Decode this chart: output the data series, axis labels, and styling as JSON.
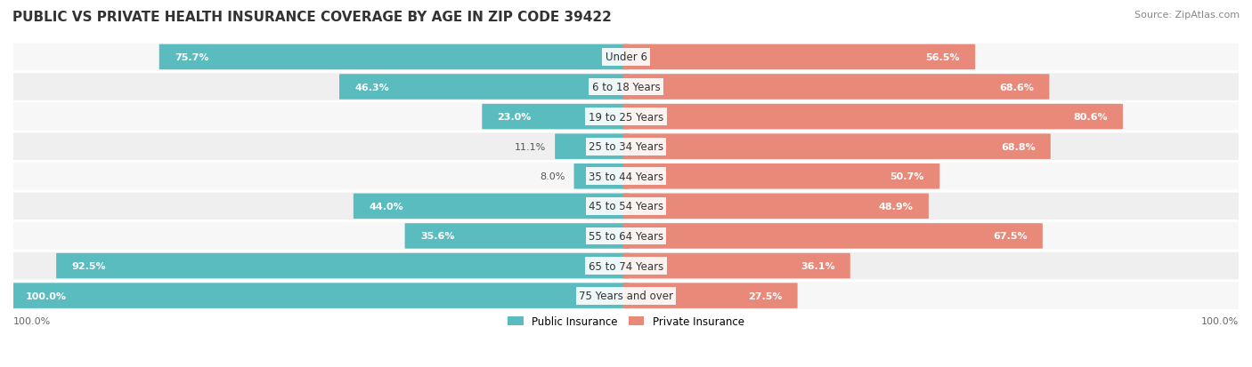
{
  "title": "PUBLIC VS PRIVATE HEALTH INSURANCE COVERAGE BY AGE IN ZIP CODE 39422",
  "source": "Source: ZipAtlas.com",
  "categories": [
    "Under 6",
    "6 to 18 Years",
    "19 to 25 Years",
    "25 to 34 Years",
    "35 to 44 Years",
    "45 to 54 Years",
    "55 to 64 Years",
    "65 to 74 Years",
    "75 Years and over"
  ],
  "public_values": [
    75.7,
    46.3,
    23.0,
    11.1,
    8.0,
    44.0,
    35.6,
    92.5,
    100.0
  ],
  "private_values": [
    56.5,
    68.6,
    80.6,
    68.8,
    50.7,
    48.9,
    67.5,
    36.1,
    27.5
  ],
  "public_color": "#5bbcbf",
  "private_color": "#e8897a",
  "bg_colors": [
    "#f7f7f7",
    "#efefef"
  ],
  "title_color": "#333333",
  "white_text": "#ffffff",
  "max_value": 100.0,
  "title_fontsize": 11,
  "label_fontsize": 8.5,
  "value_fontsize": 8,
  "legend_fontsize": 8.5,
  "source_fontsize": 8
}
